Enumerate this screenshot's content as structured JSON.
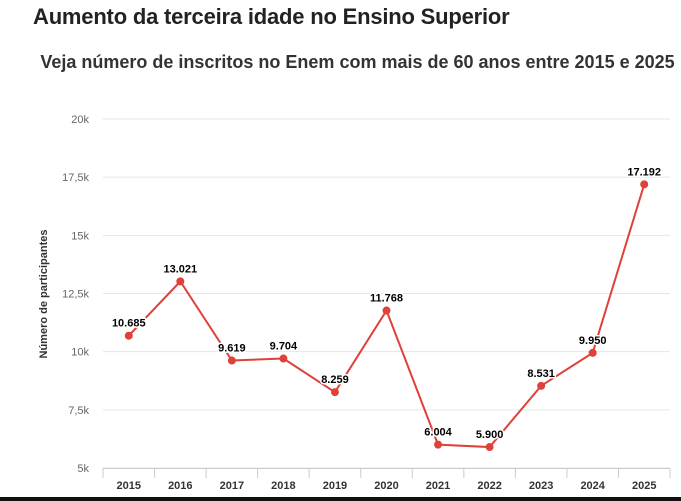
{
  "headline": "Aumento da terceira idade no Ensino Superior",
  "chart_data": {
    "type": "line",
    "title": "Veja número de inscritos no Enem com mais de 60 anos entre 2015 e 2025",
    "xlabel": "",
    "ylabel": "Número de participantes",
    "categories": [
      "2015",
      "2016",
      "2017",
      "2018",
      "2019",
      "2020",
      "2021",
      "2022",
      "2023",
      "2024",
      "2025"
    ],
    "values": [
      10685,
      13021,
      9619,
      9704,
      8259,
      11768,
      6004,
      5900,
      8531,
      9950,
      17192
    ],
    "data_labels": [
      "10.685",
      "13.021",
      "9.619",
      "9.704",
      "8.259",
      "11.768",
      "6.004",
      "5.900",
      "8.531",
      "9.950",
      "17.192"
    ],
    "ylim": [
      5000,
      20000
    ],
    "yticks": [
      5000,
      7500,
      10000,
      12500,
      15000,
      17500,
      20000
    ],
    "ytick_labels": [
      "5k",
      "7,5k",
      "10k",
      "12,5k",
      "15k",
      "17,5k",
      "20k"
    ],
    "grid": true,
    "series_color": "#e0403a"
  }
}
